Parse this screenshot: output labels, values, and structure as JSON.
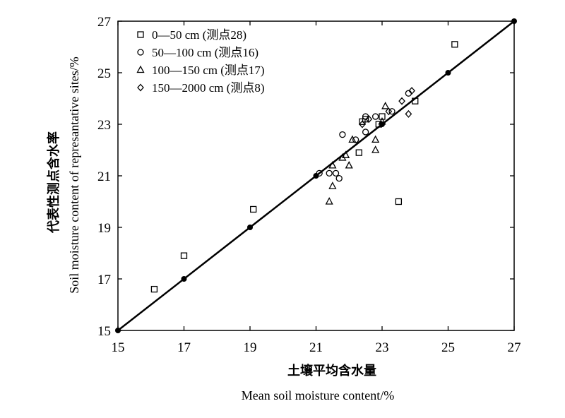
{
  "chart_data": {
    "type": "scatter",
    "xlabel_cn": "土壤平均含水量",
    "xlabel_en": "Mean soil moisture content/%",
    "ylabel_cn": "代表性测点含水率",
    "ylabel_en": "Soil moisture content of represantative sites/%",
    "xlim": [
      15,
      27
    ],
    "ylim": [
      15,
      27
    ],
    "xticks": [
      "15",
      "17",
      "19",
      "21",
      "23",
      "25",
      "27"
    ],
    "yticks": [
      "15",
      "17",
      "19",
      "21",
      "23",
      "25",
      "27"
    ],
    "grid": false,
    "legend_position": "top-left",
    "reference_line": {
      "x": [
        15,
        27
      ],
      "y": [
        15,
        27
      ],
      "markers": [
        [
          15,
          15
        ],
        [
          17,
          17
        ],
        [
          19,
          19
        ],
        [
          21,
          21
        ],
        [
          23,
          23
        ],
        [
          25,
          25
        ],
        [
          27,
          27
        ]
      ]
    },
    "series": [
      {
        "name": "0—50 cm (测点28)",
        "marker": "square",
        "points": [
          [
            16.1,
            16.6
          ],
          [
            17.0,
            17.9
          ],
          [
            19.1,
            19.7
          ],
          [
            22.3,
            21.9
          ],
          [
            22.4,
            23.1
          ],
          [
            22.5,
            23.2
          ],
          [
            22.9,
            23.0
          ],
          [
            23.0,
            23.3
          ],
          [
            23.5,
            20.0
          ],
          [
            24.0,
            23.9
          ],
          [
            25.2,
            26.1
          ]
        ]
      },
      {
        "name": "50—100 cm (测点16)",
        "marker": "circle",
        "points": [
          [
            21.1,
            21.1
          ],
          [
            21.4,
            21.1
          ],
          [
            21.6,
            21.1
          ],
          [
            21.7,
            20.9
          ],
          [
            21.8,
            22.6
          ],
          [
            22.2,
            22.4
          ],
          [
            22.5,
            22.7
          ],
          [
            22.5,
            23.3
          ],
          [
            22.8,
            23.3
          ],
          [
            23.3,
            23.5
          ],
          [
            23.8,
            24.2
          ]
        ]
      },
      {
        "name": "100—150 cm (测点17)",
        "marker": "triangle",
        "points": [
          [
            21.4,
            20.0
          ],
          [
            21.5,
            20.6
          ],
          [
            21.5,
            21.4
          ],
          [
            21.8,
            21.7
          ],
          [
            21.9,
            21.8
          ],
          [
            22.0,
            21.4
          ],
          [
            22.1,
            22.4
          ],
          [
            22.8,
            22.0
          ],
          [
            22.8,
            22.4
          ],
          [
            23.0,
            23.1
          ],
          [
            23.1,
            23.7
          ]
        ]
      },
      {
        "name": "150—2000 cm (测点8)",
        "marker": "diamond",
        "points": [
          [
            22.4,
            23.0
          ],
          [
            22.6,
            23.2
          ],
          [
            23.2,
            23.5
          ],
          [
            23.6,
            23.9
          ],
          [
            23.8,
            23.4
          ],
          [
            23.9,
            24.3
          ]
        ]
      }
    ]
  }
}
